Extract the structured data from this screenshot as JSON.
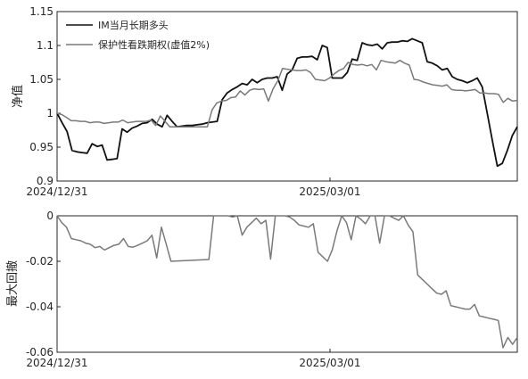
{
  "chart_data": [
    {
      "type": "line",
      "ylabel": "净值",
      "x_ticks": [
        "2024/12/31",
        "2025/03/01"
      ],
      "ylim": [
        0.9,
        1.15
      ],
      "y_ticks": [
        "0.9",
        "0.95",
        "1",
        "1.05",
        "1.1",
        "1.15"
      ],
      "legend_position": "top-left",
      "grid": false,
      "series": [
        {
          "name": "IM当月长期多头",
          "color": "#111111",
          "values": [
            1.0,
            0.986,
            0.973,
            0.945,
            0.943,
            0.942,
            0.941,
            0.955,
            0.951,
            0.953,
            0.931,
            0.932,
            0.933,
            0.977,
            0.972,
            0.978,
            0.981,
            0.985,
            0.986,
            0.991,
            0.984,
            0.98,
            0.997,
            0.988,
            0.98,
            0.981,
            0.982,
            0.982,
            0.983,
            0.984,
            0.986,
            0.987,
            0.988,
            1.02,
            1.03,
            1.035,
            1.039,
            1.044,
            1.042,
            1.05,
            1.045,
            1.05,
            1.052,
            1.052,
            1.054,
            1.034,
            1.058,
            1.064,
            1.081,
            1.083,
            1.083,
            1.084,
            1.079,
            1.1,
            1.097,
            1.052,
            1.052,
            1.052,
            1.06,
            1.08,
            1.078,
            1.104,
            1.101,
            1.1,
            1.102,
            1.095,
            1.104,
            1.105,
            1.105,
            1.107,
            1.106,
            1.11,
            1.107,
            1.104,
            1.076,
            1.074,
            1.07,
            1.064,
            1.066,
            1.054,
            1.05,
            1.048,
            1.045,
            1.048,
            1.052,
            1.039,
            1.0,
            0.96,
            0.922,
            0.926,
            0.945,
            0.967,
            0.98
          ]
        },
        {
          "name": "保护性看跌期权(虚值2%)",
          "color": "#7a7a7a",
          "values": [
            1.0,
            0.998,
            0.994,
            0.989,
            0.989,
            0.988,
            0.988,
            0.986,
            0.987,
            0.987,
            0.985,
            0.986,
            0.987,
            0.987,
            0.99,
            0.986,
            0.987,
            0.988,
            0.988,
            0.988,
            0.99,
            0.982,
            0.996,
            0.988,
            0.98,
            0.98,
            0.98,
            0.98,
            0.98,
            0.98,
            0.98,
            0.98,
            0.98,
            1.005,
            1.015,
            1.018,
            1.019,
            1.023,
            1.024,
            1.033,
            1.027,
            1.034,
            1.036,
            1.035,
            1.036,
            1.018,
            1.036,
            1.048,
            1.066,
            1.065,
            1.064,
            1.063,
            1.063,
            1.064,
            1.06,
            1.05,
            1.049,
            1.048,
            1.052,
            1.058,
            1.063,
            1.066,
            1.075,
            1.072,
            1.071,
            1.072,
            1.07,
            1.072,
            1.064,
            1.078,
            1.076,
            1.075,
            1.074,
            1.078,
            1.074,
            1.071,
            1.05,
            1.049,
            1.046,
            1.044,
            1.042,
            1.041,
            1.04,
            1.042,
            1.035,
            1.034,
            1.034,
            1.033,
            1.034,
            1.035,
            1.03,
            1.03,
            1.029,
            1.029,
            1.028,
            1.016,
            1.022,
            1.018,
            1.019
          ]
        }
      ]
    },
    {
      "type": "area",
      "ylabel": "最大回撤",
      "x_ticks": [
        "2024/12/31",
        "2025/03/01"
      ],
      "ylim": [
        -0.06,
        0
      ],
      "y_ticks": [
        "-0.06",
        "-0.04",
        "-0.02",
        "0"
      ],
      "grid": false,
      "series": [
        {
          "name": "",
          "color": "#7a7a7a",
          "values": [
            0.0,
            -0.003,
            -0.005,
            -0.01,
            -0.0105,
            -0.011,
            -0.012,
            -0.0125,
            -0.014,
            -0.0135,
            -0.015,
            -0.014,
            -0.013,
            -0.0125,
            -0.01,
            -0.0135,
            -0.0138,
            -0.013,
            -0.012,
            -0.011,
            -0.0085,
            -0.0185,
            -0.005,
            -0.0125,
            -0.02,
            -0.0199,
            -0.0198,
            -0.0197,
            -0.0196,
            -0.0195,
            -0.0194,
            -0.0193,
            -0.0192,
            0.0,
            0.0,
            0.0,
            0.0,
            -0.0005,
            0.0,
            -0.0085,
            -0.005,
            -0.003,
            -0.001,
            -0.0035,
            -0.002,
            -0.019,
            0.0,
            0.0,
            0.0,
            -0.0005,
            -0.002,
            -0.004,
            -0.0045,
            -0.005,
            -0.0035,
            -0.016,
            -0.018,
            -0.02,
            -0.015,
            -0.0065,
            0.0,
            -0.003,
            -0.0105,
            0.0,
            -0.0015,
            -0.0035,
            0.0,
            0.0,
            -0.012,
            0.0,
            0.0,
            -0.001,
            -0.002,
            0.0,
            -0.004,
            -0.007,
            -0.026,
            -0.028,
            -0.03,
            -0.032,
            -0.034,
            -0.0345,
            -0.033,
            -0.0395,
            -0.04,
            -0.0405,
            -0.041,
            -0.041,
            -0.039,
            -0.044,
            -0.0445,
            -0.045,
            -0.0455,
            -0.046,
            -0.058,
            -0.0535,
            -0.0565,
            -0.0535
          ]
        }
      ]
    }
  ]
}
